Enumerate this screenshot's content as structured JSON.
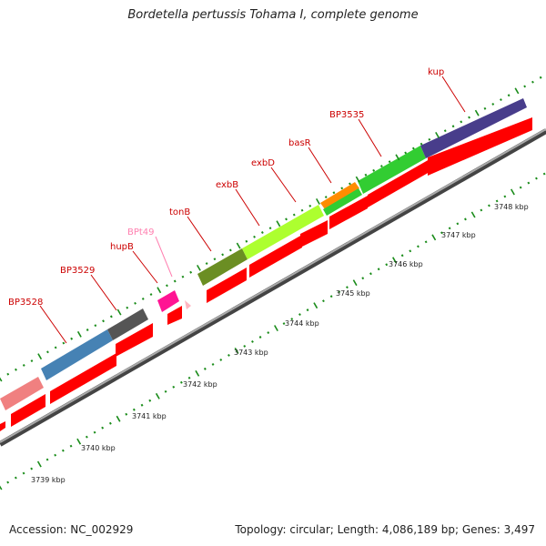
{
  "title": "Bordetella pertussis Tohama I, complete genome",
  "footer": {
    "accession": "Accession: NC_002929",
    "topology": "Topology: circular; Length: 4,086,189 bp; Genes: 3,497"
  },
  "ticks": [
    {
      "label": "3739 kbp"
    },
    {
      "label": "3740 kbp"
    },
    {
      "label": "3741 kbp"
    },
    {
      "label": "3742 kbp"
    },
    {
      "label": "3743 kbp"
    },
    {
      "label": "3744 kbp"
    },
    {
      "label": "3745 kbp"
    },
    {
      "label": "3746 kbp"
    },
    {
      "label": "3747 kbp"
    },
    {
      "label": "3748 kbp"
    }
  ],
  "genes": [
    {
      "name": "BP3528",
      "color": "#f08080",
      "label_color": "#cc0000"
    },
    {
      "name": "BP3529",
      "color": "#4682b4",
      "label_color": "#cc0000"
    },
    {
      "name": "",
      "color": "#555555",
      "label_color": "#cc0000"
    },
    {
      "name": "hupB",
      "color": "#ff1493",
      "label_color": "#cc0000"
    },
    {
      "name": "BPt49",
      "color": "#ffb6c1",
      "label_color": "#ff80b0"
    },
    {
      "name": "tonB",
      "color": "#6b8e23",
      "label_color": "#cc0000"
    },
    {
      "name": "exbB",
      "color": "#adff2f",
      "label_color": "#cc0000"
    },
    {
      "name": "exbD",
      "color": "#adff2f",
      "label_color": "#cc0000"
    },
    {
      "name": "basR",
      "color": "#ff8c00",
      "label_color": "#cc0000"
    },
    {
      "name": "BP3535",
      "color": "#32cd32",
      "label_color": "#cc0000"
    },
    {
      "name": "kup",
      "color": "#483d8b",
      "label_color": "#cc0000"
    }
  ],
  "colors": {
    "cds": "#ff0000",
    "backbone": "#999999",
    "tick_green": "#1a8c1a"
  }
}
